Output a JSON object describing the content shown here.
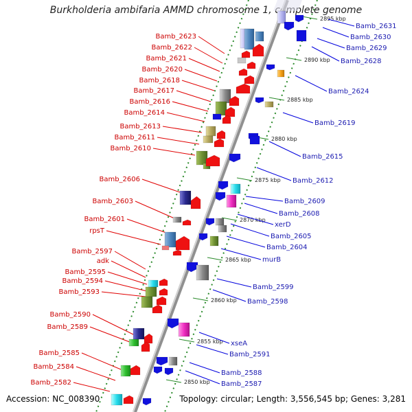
{
  "title": "Burkholderia ambifaria AMMD chromosome 1, complete genome",
  "footer": {
    "accession": "Accession: NC_008390",
    "topology": "Topology: circular; Length: 3,556,545 bp; Genes: 3,281"
  },
  "colors": {
    "left_label": "#cc0000",
    "right_label": "#1a1ab0",
    "forward_gene": "#ee1111",
    "reverse_gene": "#1111dd",
    "backbone": "#909090",
    "tick": "#2a8a2a"
  },
  "scale_ticks": [
    "2850 kbp",
    "2855 kbp",
    "2860 kbp",
    "2865 kbp",
    "2870 kbp",
    "2875 kbp",
    "2880 kbp",
    "2885 kbp",
    "2890 kbp",
    "2895 kbp"
  ],
  "left_labels": [
    "Bamb_2623",
    "Bamb_2622",
    "Bamb_2621",
    "Bamb_2620",
    "Bamb_2618",
    "Bamb_2617",
    "Bamb_2616",
    "Bamb_2614",
    "Bamb_2613",
    "Bamb_2611",
    "Bamb_2610",
    "Bamb_2606",
    "Bamb_2603",
    "Bamb_2601",
    "rpsT",
    "Bamb_2597",
    "adk",
    "Bamb_2595",
    "Bamb_2594",
    "Bamb_2593",
    "Bamb_2590",
    "Bamb_2589",
    "Bamb_2585",
    "Bamb_2584",
    "Bamb_2582"
  ],
  "right_labels": [
    "Bamb_2631",
    "Bamb_2630",
    "Bamb_2629",
    "Bamb_2628",
    "Bamb_2624",
    "Bamb_2619",
    "Bamb_2615",
    "Bamb_2612",
    "Bamb_2609",
    "Bamb_2608",
    "xerD",
    "Bamb_2605",
    "Bamb_2604",
    "murB",
    "Bamb_2599",
    "Bamb_2598",
    "xseA",
    "Bamb_2591",
    "Bamb_2588",
    "Bamb_2587"
  ]
}
